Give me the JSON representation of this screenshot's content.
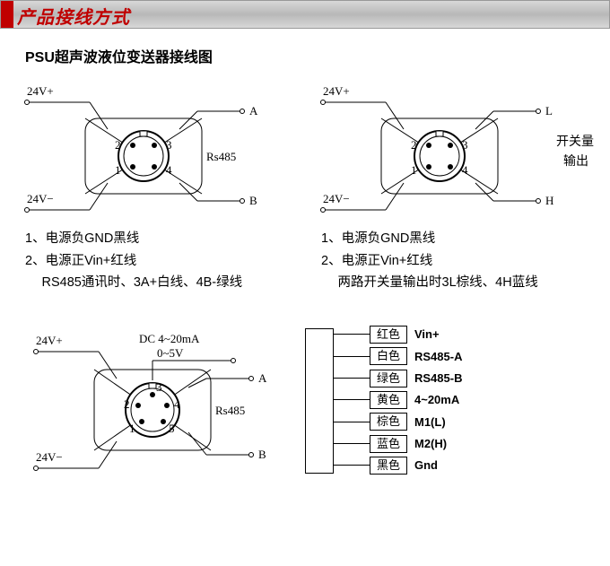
{
  "header": {
    "title": "产品接线方式"
  },
  "subtitle": "PSU超声波液位变送器接线图",
  "colors": {
    "accent": "#c00000",
    "line": "#000000",
    "bg": "#ffffff",
    "header_grad_top": "#d8d8d8",
    "header_grad_mid": "#b8b8b8"
  },
  "diagramA": {
    "top_left": "24V+",
    "bottom_left": "24V−",
    "top_right": "A",
    "bottom_right": "B",
    "side_label": "Rs485",
    "pins": [
      "1",
      "2",
      "3",
      "4"
    ],
    "notes": [
      "1、电源负GND黑线",
      "2、电源正Vin+红线",
      "　 RS485通讯时、3A+白线、4B-绿线"
    ]
  },
  "diagramB": {
    "top_left": "24V+",
    "bottom_left": "24V−",
    "top_right": "L",
    "bottom_right": "H",
    "side_label1": "开关量",
    "side_label2": "输出",
    "pins": [
      "1",
      "2",
      "3",
      "4"
    ],
    "notes": [
      "1、电源负GND黑线",
      "2、电源正Vin+红线",
      "　 两路开关量输出时3L棕线、4H蓝线"
    ]
  },
  "diagramC": {
    "top_left": "24V+",
    "bottom_left": "24V−",
    "top_right": "A",
    "bottom_right": "B",
    "side_label": "Rs485",
    "extra_top1": "DC 4~20mA",
    "extra_top2": "0~5V",
    "pins": [
      "1",
      "2",
      "3",
      "4",
      "5"
    ]
  },
  "wire_table": {
    "rows": [
      {
        "color_cn": "红色",
        "signal": "Vin+"
      },
      {
        "color_cn": "白色",
        "signal": "RS485-A"
      },
      {
        "color_cn": "绿色",
        "signal": "RS485-B"
      },
      {
        "color_cn": "黄色",
        "signal": "4~20mA"
      },
      {
        "color_cn": "棕色",
        "signal": "M1(L)"
      },
      {
        "color_cn": "蓝色",
        "signal": "M2(H)"
      },
      {
        "color_cn": "黑色",
        "signal": "Gnd"
      }
    ]
  }
}
